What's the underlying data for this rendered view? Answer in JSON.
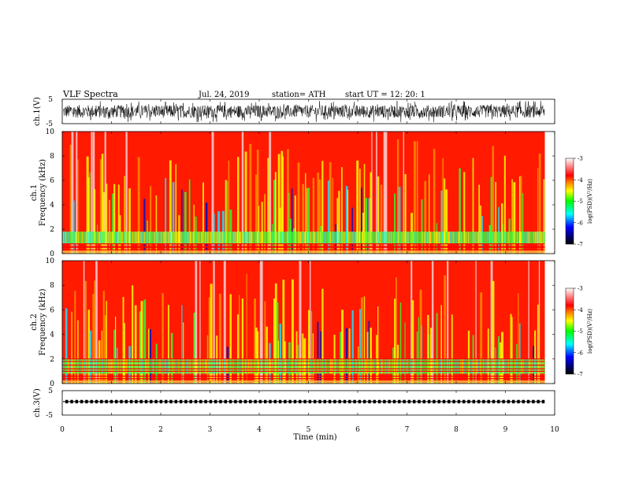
{
  "header": {
    "title": "VLF  Spectra",
    "date": "Jul.  24,  2019",
    "station": "station= ATH",
    "start": "start  UT  =     12: 20: 1"
  },
  "chart_data": [
    {
      "id": "ch1-waveform",
      "type": "line",
      "ylabel": "ch.1(V)",
      "yticks": [
        "5",
        "-5"
      ],
      "ylim": [
        -5,
        5
      ],
      "xlim": [
        0,
        10
      ],
      "data_end_min": 9.8,
      "description": "dense noise waveform, amplitude roughly -3 to 3 V"
    },
    {
      "id": "ch1-spectrogram",
      "type": "heatmap",
      "ylabel_top": "ch.1",
      "ylabel": "Frequency  (kHz)",
      "yticks": [
        "10",
        "8",
        "6",
        "4",
        "2",
        "0"
      ],
      "ylim": [
        0,
        10
      ],
      "xlim": [
        0,
        10
      ],
      "data_end_min": 9.8,
      "colorbar": {
        "label": "log(PSD)(V²/Hz)",
        "ticks": [
          "-3",
          "-4",
          "-5",
          "-6",
          "-7"
        ],
        "range": [
          -7,
          -3
        ]
      }
    },
    {
      "id": "ch2-spectrogram",
      "type": "heatmap",
      "ylabel_top": "ch.2",
      "ylabel": "Frequency  (kHz)",
      "yticks": [
        "10",
        "8",
        "6",
        "4",
        "2",
        "0"
      ],
      "ylim": [
        0,
        10
      ],
      "xlim": [
        0,
        10
      ],
      "data_end_min": 9.8,
      "colorbar": {
        "label": "log(PSD)(V²/Hz)",
        "ticks": [
          "-3",
          "-4",
          "-5",
          "-6",
          "-7"
        ],
        "range": [
          -7,
          -3
        ]
      }
    },
    {
      "id": "ch3-waveform",
      "type": "line",
      "ylabel": "ch.3(V)",
      "yticks": [
        "5",
        "-5"
      ],
      "ylim": [
        -5,
        5
      ],
      "xlim": [
        0,
        10
      ],
      "data_end_min": 9.8,
      "level_v": 0.5,
      "description": "nearly flat trace with small periodic pulses"
    }
  ],
  "xaxis": {
    "label": "Time  (min)",
    "ticks": [
      "0",
      "1",
      "2",
      "3",
      "4",
      "5",
      "6",
      "7",
      "8",
      "9",
      "10"
    ]
  },
  "colors": {
    "low": "#000000",
    "blue": "#0000ff",
    "cyan": "#00ffff",
    "green": "#00ff00",
    "yellow": "#ffff00",
    "orange": "#ff8000",
    "red": "#ff0000",
    "high": "#ffffff"
  }
}
